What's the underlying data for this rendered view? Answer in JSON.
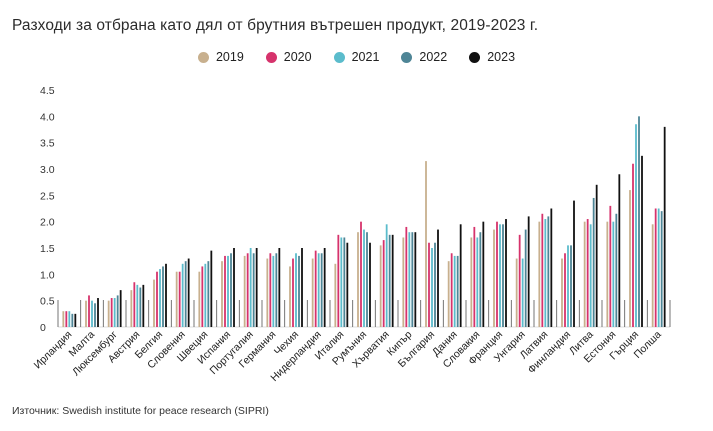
{
  "title": "Разходи за отбрана като дял от брутния вътрешен продукт, 2019-2023 г.",
  "source": "Източник: Swedish institute for peace research (SIPRI)",
  "chart_data": {
    "type": "bar",
    "title": "Разходи за отбрана като дял от брутния вътрешен продукт, 2019-2023 г.",
    "xlabel": "",
    "ylabel": "",
    "ylim": [
      0,
      4.5
    ],
    "yticks": [
      0,
      0.5,
      1.0,
      1.5,
      2.0,
      2.5,
      3.0,
      3.5,
      4.0,
      4.5
    ],
    "ytick_labels": [
      "0",
      "0.5",
      "1.0",
      "1.5",
      "2.0",
      "2.5",
      "3.0",
      "3.5",
      "4.0",
      "4.5"
    ],
    "grid": "vertical-group-separators",
    "legend_position": "top-center",
    "categories": [
      "Ирландия",
      "Малта",
      "Люксембург",
      "Австрия",
      "Белгия",
      "Словения",
      "Швеция",
      "Испания",
      "Португалия",
      "Германия",
      "Чехия",
      "Нидерландия",
      "Италия",
      "Румъния",
      "Хърватия",
      "Кипър",
      "България",
      "Дания",
      "Словакия",
      "Франция",
      "Унгария",
      "Латвия",
      "Финландия",
      "Литва",
      "Естония",
      "Гърция",
      "Полша"
    ],
    "series": [
      {
        "name": "2019",
        "color": "#c8b08e",
        "values": [
          0.3,
          0.5,
          0.5,
          0.7,
          0.9,
          1.05,
          1.05,
          1.25,
          1.35,
          1.3,
          1.15,
          1.3,
          1.2,
          1.8,
          1.55,
          1.7,
          3.15,
          1.25,
          1.7,
          1.85,
          1.3,
          2.0,
          1.3,
          2.0,
          2.0,
          2.6,
          1.95
        ]
      },
      {
        "name": "2020",
        "color": "#d6336c",
        "values": [
          0.3,
          0.6,
          0.55,
          0.85,
          1.05,
          1.05,
          1.15,
          1.35,
          1.4,
          1.4,
          1.3,
          1.45,
          1.75,
          2.0,
          1.65,
          1.9,
          1.6,
          1.4,
          1.9,
          2.0,
          1.75,
          2.15,
          1.4,
          2.05,
          2.3,
          3.1,
          2.25
        ]
      },
      {
        "name": "2021",
        "color": "#5bbccc",
        "values": [
          0.3,
          0.5,
          0.55,
          0.8,
          1.1,
          1.2,
          1.2,
          1.35,
          1.5,
          1.35,
          1.4,
          1.4,
          1.7,
          1.85,
          1.95,
          1.8,
          1.5,
          1.35,
          1.7,
          1.95,
          1.3,
          2.05,
          1.55,
          1.95,
          2.0,
          3.85,
          2.25
        ]
      },
      {
        "name": "2022",
        "color": "#4e8596",
        "values": [
          0.25,
          0.45,
          0.6,
          0.75,
          1.15,
          1.25,
          1.25,
          1.4,
          1.4,
          1.4,
          1.35,
          1.4,
          1.7,
          1.8,
          1.75,
          1.8,
          1.6,
          1.35,
          1.8,
          1.95,
          1.85,
          2.1,
          1.55,
          2.45,
          2.15,
          4.0,
          2.2
        ]
      },
      {
        "name": "2023",
        "color": "#111111",
        "values": [
          0.25,
          0.55,
          0.7,
          0.8,
          1.2,
          1.3,
          1.45,
          1.5,
          1.5,
          1.5,
          1.5,
          1.5,
          1.6,
          1.6,
          1.75,
          1.8,
          1.85,
          1.95,
          2.0,
          2.05,
          2.1,
          2.25,
          2.4,
          2.7,
          2.9,
          3.25,
          3.8
        ]
      }
    ]
  }
}
